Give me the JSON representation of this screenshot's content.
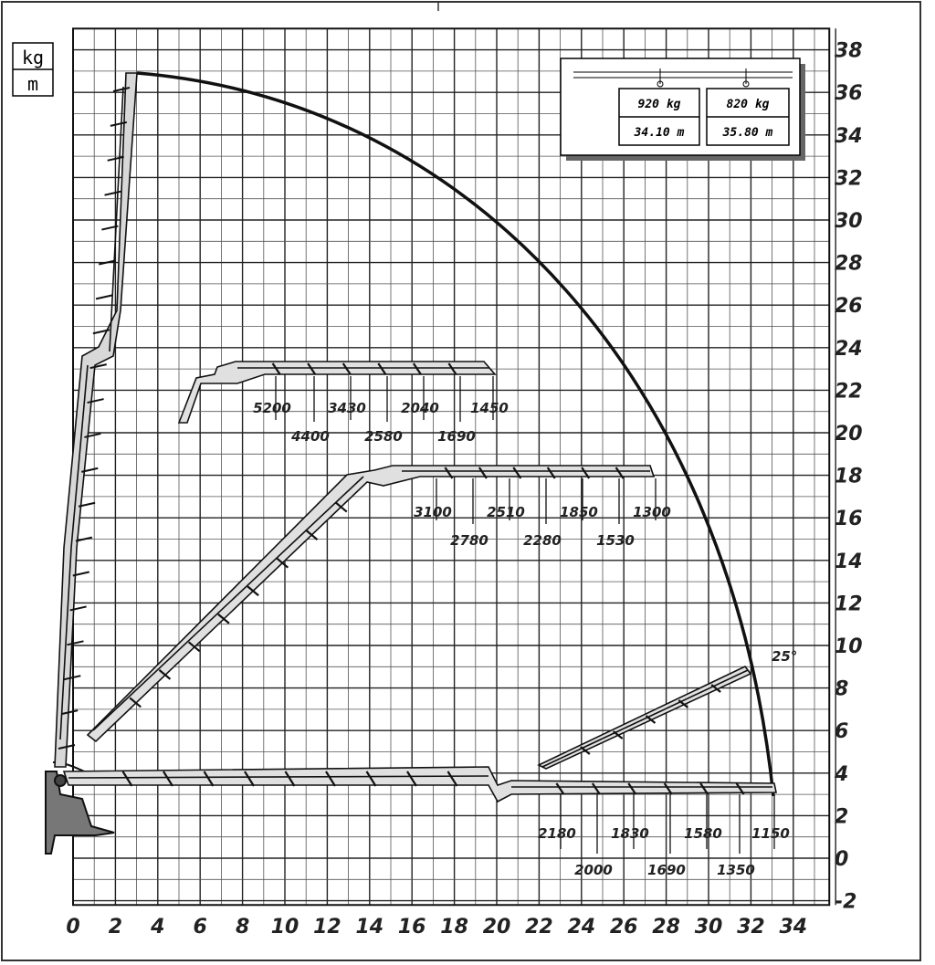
{
  "units": {
    "top": "kg",
    "bottom": "m"
  },
  "legend": {
    "cells": [
      {
        "load": "920 kg",
        "outreach": "34.10 m"
      },
      {
        "load": "820 kg",
        "outreach": "35.80 m"
      }
    ]
  },
  "angle_label": "25°",
  "x_ticks": [
    "0",
    "2",
    "4",
    "6",
    "8",
    "10",
    "12",
    "14",
    "16",
    "18",
    "20",
    "22",
    "24",
    "26",
    "28",
    "30",
    "32",
    "34"
  ],
  "y_ticks": [
    "38",
    "36",
    "34",
    "32",
    "30",
    "28",
    "26",
    "24",
    "22",
    "20",
    "18",
    "16",
    "14",
    "12",
    "10",
    "8",
    "6",
    "4",
    "2",
    "0",
    "-2"
  ],
  "load_rows": {
    "boom_22m_top": [
      "5200",
      "3430",
      "2040",
      "1450"
    ],
    "boom_22m_bottom": [
      "4400",
      "2580",
      "1690"
    ],
    "boom_18m_top": [
      "3100",
      "2510",
      "1850",
      "1300"
    ],
    "boom_18m_bottom": [
      "2780",
      "2280",
      "1530"
    ],
    "boom_3m_top": [
      "2180",
      "1830",
      "1580",
      "1150"
    ],
    "boom_3m_bottom": [
      "2000",
      "1690",
      "1350"
    ]
  }
}
